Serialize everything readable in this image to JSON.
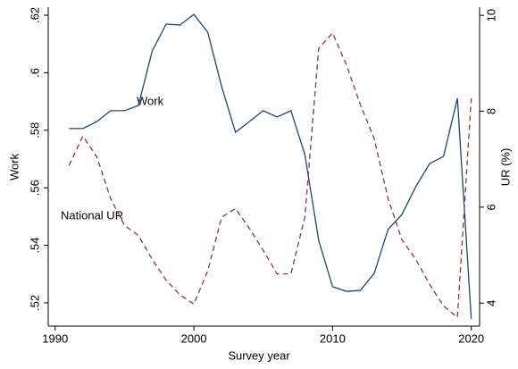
{
  "chart_data": {
    "type": "line",
    "x_label": "Survey year",
    "y_label": "Work",
    "y2_label": "UR (%)",
    "annotations": [
      "Work",
      "National UR"
    ],
    "x": [
      1991,
      1992,
      1993,
      1994,
      1995,
      1996,
      1997,
      1998,
      1999,
      2000,
      2001,
      2002,
      2003,
      2004,
      2005,
      2006,
      2007,
      2008,
      2009,
      2010,
      2011,
      2012,
      2013,
      2014,
      2015,
      2016,
      2017,
      2018,
      2019,
      2020
    ],
    "series": [
      {
        "name": "Work",
        "color": "#1a476f",
        "dash": "solid",
        "values": [
          0.5806,
          0.5806,
          0.583,
          0.5868,
          0.5868,
          0.5886,
          0.6076,
          0.6169,
          0.6166,
          0.6203,
          0.6141,
          0.5952,
          0.5793,
          0.583,
          0.5868,
          0.5846,
          0.5868,
          0.5716,
          0.5417,
          0.5256,
          0.524,
          0.5243,
          0.5302,
          0.5455,
          0.5507,
          0.5604,
          0.5684,
          0.5709,
          0.5911,
          0.5144
        ]
      },
      {
        "name": "National UR",
        "color": "#90353b",
        "dash": "dashed",
        "axis": "y2",
        "values": [
          6.87,
          7.48,
          7.05,
          6.18,
          5.62,
          5.41,
          4.91,
          4.48,
          4.17,
          3.98,
          4.67,
          5.79,
          5.97,
          5.56,
          5.1,
          4.61,
          4.61,
          5.79,
          9.31,
          9.63,
          8.97,
          8.14,
          7.43,
          6.18,
          5.32,
          4.91,
          4.39,
          3.94,
          3.7,
          8.27
        ]
      }
    ],
    "xlim": [
      1989.5,
      2020.6
    ],
    "xticks": [
      1990,
      2000,
      2010,
      2020
    ],
    "ylim": [
      0.5119,
      0.6228
    ],
    "yticks": [
      {
        "value": 0.52,
        "label": ".52"
      },
      {
        "value": 0.54,
        "label": ".54"
      },
      {
        "value": 0.56,
        "label": ".56"
      },
      {
        "value": 0.58,
        "label": ".58"
      },
      {
        "value": 0.6,
        "label": ".6"
      },
      {
        "value": 0.62,
        "label": ".62"
      }
    ],
    "y2lim": [
      3.52,
      10.17
    ],
    "y2ticks": [
      4,
      6,
      8,
      10
    ]
  }
}
